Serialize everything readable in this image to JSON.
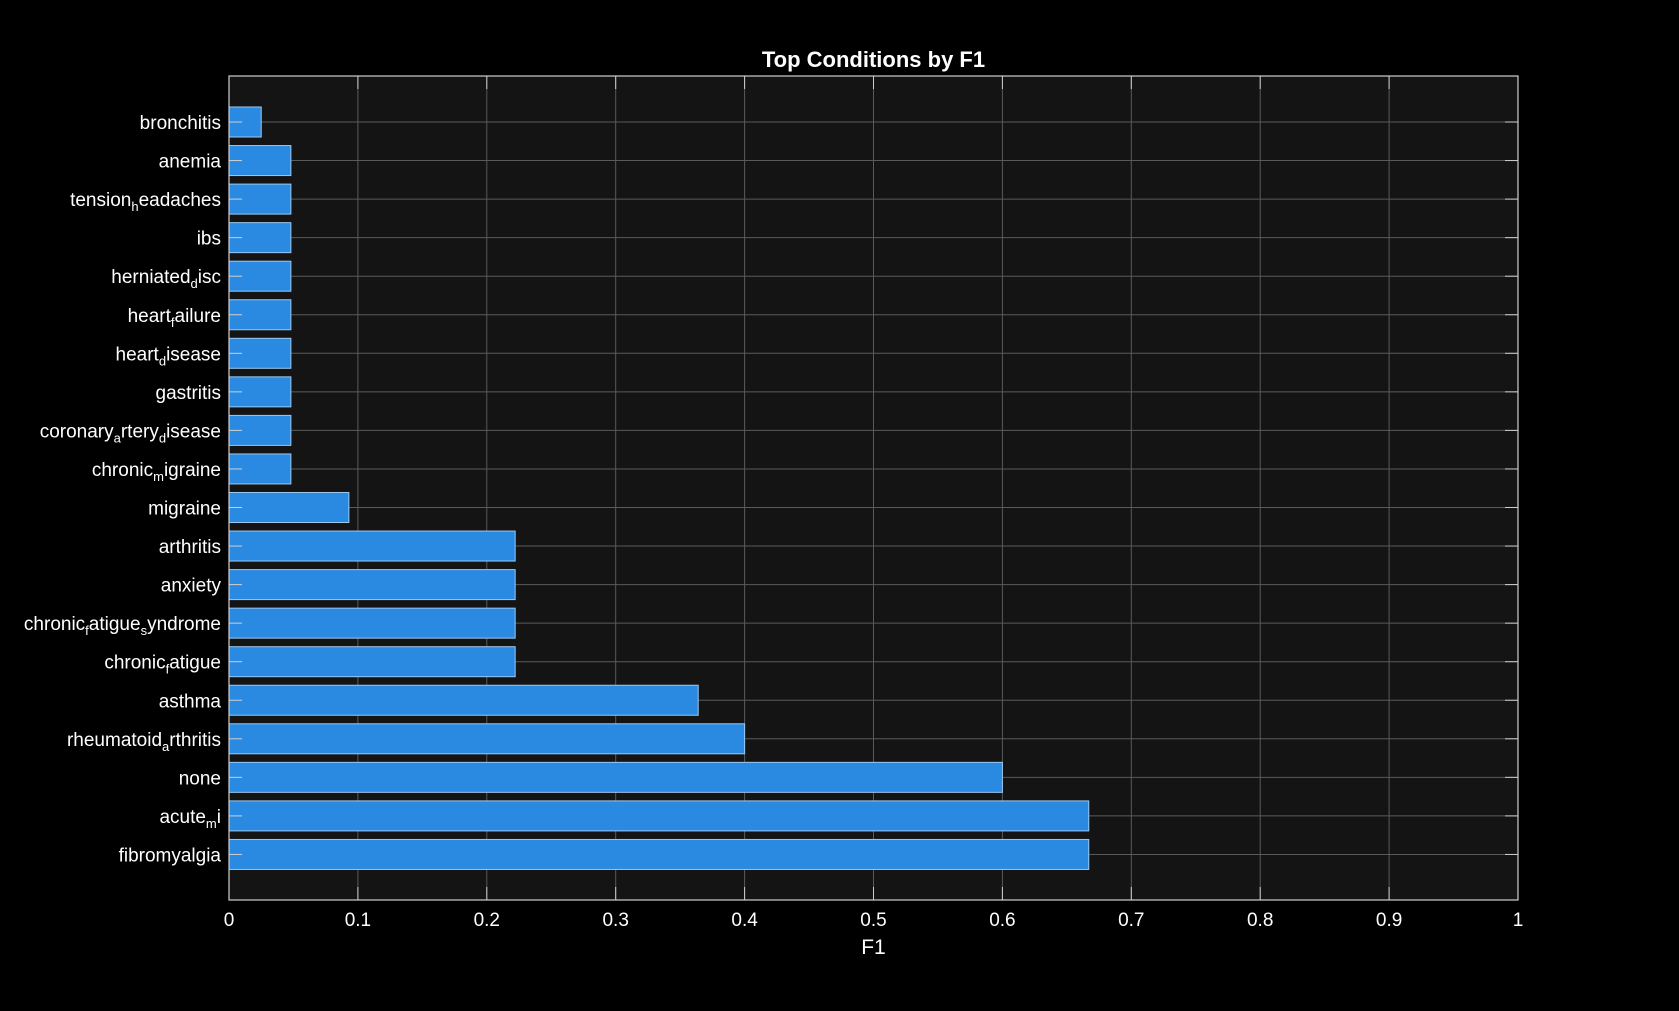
{
  "chart_data": {
    "type": "bar",
    "orientation": "horizontal",
    "title": "Top Conditions by F1",
    "xlabel": "F1",
    "ylabel": "",
    "xlim": [
      0,
      1
    ],
    "xticks": [
      "0",
      "0.1",
      "0.2",
      "0.3",
      "0.4",
      "0.5",
      "0.6",
      "0.7",
      "0.8",
      "0.9",
      "1"
    ],
    "grid": true,
    "categories": [
      {
        "base": "bronchitis",
        "sub": "",
        "rest": ""
      },
      {
        "base": "anemia",
        "sub": "",
        "rest": ""
      },
      {
        "base": "tension",
        "sub": "h",
        "rest": "eadaches"
      },
      {
        "base": "ibs",
        "sub": "",
        "rest": ""
      },
      {
        "base": "herniated",
        "sub": "d",
        "rest": "isc"
      },
      {
        "base": "heart",
        "sub": "f",
        "rest": "ailure"
      },
      {
        "base": "heart",
        "sub": "d",
        "rest": "isease"
      },
      {
        "base": "gastritis",
        "sub": "",
        "rest": ""
      },
      {
        "base": "coronary",
        "sub": "a",
        "rest": "rtery",
        "sub2": "d",
        "rest2": "isease"
      },
      {
        "base": "chronic",
        "sub": "m",
        "rest": "igraine"
      },
      {
        "base": "migraine",
        "sub": "",
        "rest": ""
      },
      {
        "base": "arthritis",
        "sub": "",
        "rest": ""
      },
      {
        "base": "anxiety",
        "sub": "",
        "rest": ""
      },
      {
        "base": "chronic",
        "sub": "f",
        "rest": "atigue",
        "sub2": "s",
        "rest2": "yndrome"
      },
      {
        "base": "chronic",
        "sub": "f",
        "rest": "atigue"
      },
      {
        "base": "asthma",
        "sub": "",
        "rest": ""
      },
      {
        "base": "rheumatoid",
        "sub": "a",
        "rest": "rthritis"
      },
      {
        "base": "none",
        "sub": "",
        "rest": ""
      },
      {
        "base": "acute",
        "sub": "m",
        "rest": "i"
      },
      {
        "base": "fibromyalgia",
        "sub": "",
        "rest": ""
      }
    ],
    "values": [
      0.025,
      0.048,
      0.048,
      0.048,
      0.048,
      0.048,
      0.048,
      0.048,
      0.048,
      0.048,
      0.093,
      0.222,
      0.222,
      0.222,
      0.222,
      0.364,
      0.4,
      0.6,
      0.667,
      0.667
    ],
    "colors": {
      "background": "#000000",
      "axes_background": "#141414",
      "bar": "#2a8ae2",
      "bar_edge": "#9cc8f0",
      "grid": "#5a5a5a",
      "axis": "#cfcfcf",
      "text": "#ffffff"
    }
  }
}
